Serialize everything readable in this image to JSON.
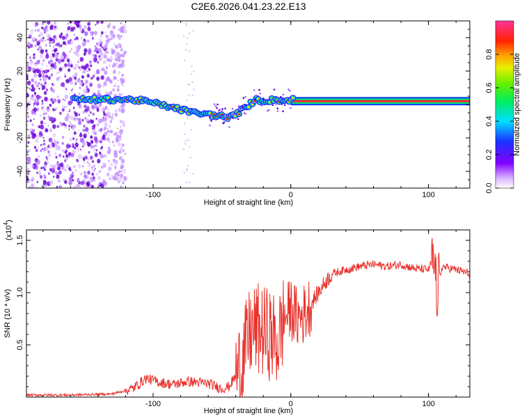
{
  "title": "C2E6.2026.041.23.22.E13",
  "chart_data": [
    {
      "type": "heatmap",
      "name": "spectrogram",
      "xlabel": "Height of straight line (km)",
      "ylabel": "Frequency (Hz)",
      "xlim": [
        -192,
        130
      ],
      "ylim": [
        -50,
        50
      ],
      "xticks": [
        -100,
        0,
        100
      ],
      "yticks": [
        -40,
        -20,
        0,
        20,
        40
      ],
      "colorbar": {
        "label": "Normalized spectral amplitude",
        "range": [
          0,
          1
        ],
        "ticks": [
          "0.0",
          "0.2",
          "0.4",
          "0.6",
          "0.8"
        ]
      },
      "signal_track": {
        "description": "Frequency of the spectral peak vs height",
        "x": [
          -155,
          -140,
          -130,
          -120,
          -110,
          -100,
          -90,
          -80,
          -70,
          -60,
          -50,
          -45,
          -40,
          -35,
          -30,
          -25,
          -20,
          -15,
          -10,
          -5,
          0,
          5,
          10,
          20,
          40,
          60,
          80,
          100,
          130
        ],
        "y": [
          3,
          3,
          3,
          3,
          2.5,
          1,
          -1,
          -3,
          -5,
          -6,
          -7,
          -8,
          -6,
          -3,
          0,
          3,
          2,
          2.5,
          3,
          2,
          3,
          3,
          2,
          2,
          2,
          2,
          2,
          2,
          2
        ]
      },
      "noise_region_x": [
        -192,
        -120
      ]
    },
    {
      "type": "line",
      "name": "snr",
      "xlabel": "Height of straight line (km)",
      "ylabel": "SNR (10 * v/v)",
      "multiplier": "(x10",
      "multiplier_exp": "4",
      "multiplier_close": ")",
      "xlim": [
        -192,
        130
      ],
      "ylim": [
        0,
        1.6
      ],
      "xticks": [
        -100,
        0,
        100
      ],
      "yticks": [
        "0.5",
        "1.0",
        "1.5"
      ],
      "color": "#e8312a",
      "series": [
        {
          "name": "SNR",
          "x": [
            -192,
            -160,
            -130,
            -115,
            -105,
            -95,
            -85,
            -75,
            -60,
            -50,
            -45,
            -40,
            -35,
            -32,
            -30,
            -25,
            -20,
            -15,
            -12,
            -10,
            -5,
            0,
            5,
            10,
            15,
            20,
            25,
            30,
            35,
            40,
            50,
            60,
            70,
            80,
            90,
            100,
            103,
            106,
            110,
            120,
            130
          ],
          "y": [
            0.02,
            0.02,
            0.03,
            0.08,
            0.18,
            0.14,
            0.12,
            0.15,
            0.13,
            0.08,
            0.1,
            0.2,
            0.35,
            0.5,
            0.6,
            0.65,
            0.62,
            0.6,
            0.55,
            0.5,
            0.75,
            0.85,
            0.75,
            0.8,
            0.9,
            1.0,
            1.1,
            1.18,
            1.2,
            1.22,
            1.25,
            1.27,
            1.25,
            1.27,
            1.23,
            1.22,
            1.3,
            1.0,
            1.25,
            1.22,
            1.18
          ]
        }
      ]
    }
  ]
}
